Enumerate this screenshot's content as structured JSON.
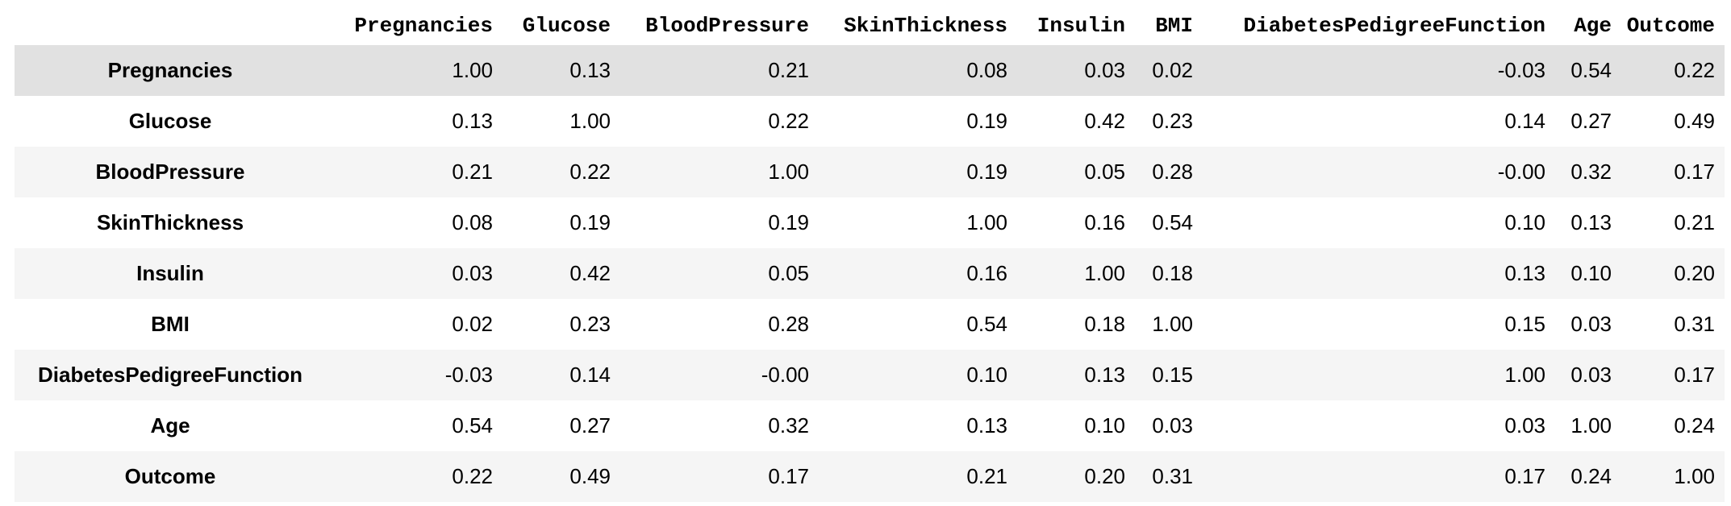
{
  "table": {
    "columns": [
      "Pregnancies",
      "Glucose",
      "BloodPressure",
      "SkinThickness",
      "Insulin",
      "BMI",
      "DiabetesPedigreeFunction",
      "Age",
      "Outcome"
    ],
    "rows": [
      {
        "label": "Pregnancies",
        "values": [
          "1.00",
          "0.13",
          "0.21",
          "0.08",
          "0.03",
          "0.02",
          "-0.03",
          "0.54",
          "0.22"
        ]
      },
      {
        "label": "Glucose",
        "values": [
          "0.13",
          "1.00",
          "0.22",
          "0.19",
          "0.42",
          "0.23",
          "0.14",
          "0.27",
          "0.49"
        ]
      },
      {
        "label": "BloodPressure",
        "values": [
          "0.21",
          "0.22",
          "1.00",
          "0.19",
          "0.05",
          "0.28",
          "-0.00",
          "0.32",
          "0.17"
        ]
      },
      {
        "label": "SkinThickness",
        "values": [
          "0.08",
          "0.19",
          "0.19",
          "1.00",
          "0.16",
          "0.54",
          "0.10",
          "0.13",
          "0.21"
        ]
      },
      {
        "label": "Insulin",
        "values": [
          "0.03",
          "0.42",
          "0.05",
          "0.16",
          "1.00",
          "0.18",
          "0.13",
          "0.10",
          "0.20"
        ]
      },
      {
        "label": "BMI",
        "values": [
          "0.02",
          "0.23",
          "0.28",
          "0.54",
          "0.18",
          "1.00",
          "0.15",
          "0.03",
          "0.31"
        ]
      },
      {
        "label": "DiabetesPedigreeFunction",
        "values": [
          "-0.03",
          "0.14",
          "-0.00",
          "0.10",
          "0.13",
          "0.15",
          "1.00",
          "0.03",
          "0.17"
        ]
      },
      {
        "label": "Age",
        "values": [
          "0.54",
          "0.27",
          "0.32",
          "0.13",
          "0.10",
          "0.03",
          "0.03",
          "1.00",
          "0.24"
        ]
      },
      {
        "label": "Outcome",
        "values": [
          "0.22",
          "0.49",
          "0.17",
          "0.21",
          "0.20",
          "0.31",
          "0.17",
          "0.24",
          "1.00"
        ]
      }
    ],
    "highlighted_row": 0
  },
  "colors": {
    "row_odd": "#f5f5f5",
    "row_even": "#ffffff",
    "row_hover": "#e1e1e1",
    "text": "#000000"
  }
}
